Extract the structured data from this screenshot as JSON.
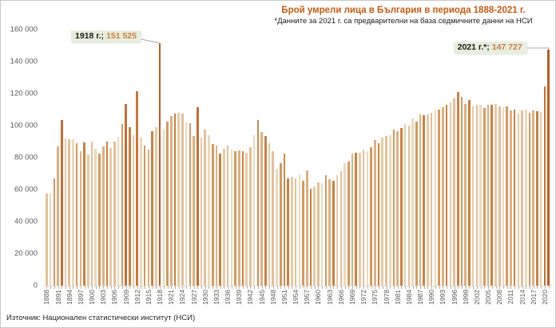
{
  "header": {
    "title": "Брой умрели лица в България в периода 1888-2021 г.",
    "subtitle": "*Данните за 2021 г. са предварителни на база седмичните данни на НСИ"
  },
  "annotations": {
    "a1918": {
      "label": "1918 г.;",
      "value": "151 525"
    },
    "a2021": {
      "label": "2021 г.*;",
      "value": "147 727"
    }
  },
  "source": "Източник: Национален статистически институт (НСИ)",
  "colors": {
    "title_text": "#c55a11",
    "annotation_value_text": "#cf7b45",
    "annotation_bg": "#e7eedd",
    "connector": "#a6a6a6",
    "axis_line": "#d9d9d9",
    "year_tick": "#c9a97f",
    "bar_palette": [
      "#e2c09a",
      "#ecd9bd",
      "#d29a62",
      "#ddb083",
      "#c58245",
      "#e6cba8"
    ],
    "dark_years": {
      "1892": "#c1703a",
      "1909": "#c1703a",
      "1912": "#c47a3e",
      "1918": "#b55f27",
      "1928": "#c1703a",
      "1944": "#cd8a4e",
      "1951": "#cd8a4e",
      "1997": "#c88447",
      "2020": "#c0703a",
      "2021": "#b55f27"
    }
  },
  "chart_data": {
    "type": "bar",
    "title": "Брой умрели лица в България в периода 1888-2021 г.",
    "xlabel": "",
    "ylabel": "",
    "ylim": [
      0,
      160000
    ],
    "y_tick_labels": [
      "0",
      "20 000",
      "40 000",
      "60 000",
      "80 000",
      "100 000",
      "120 000",
      "140 000",
      "160 000"
    ],
    "x_tick_step": 3,
    "grid": false,
    "legend": "none",
    "categories": [
      1888,
      1889,
      1890,
      1891,
      1892,
      1893,
      1894,
      1895,
      1896,
      1897,
      1898,
      1899,
      1900,
      1901,
      1902,
      1903,
      1904,
      1905,
      1906,
      1907,
      1908,
      1909,
      1910,
      1911,
      1912,
      1913,
      1914,
      1915,
      1916,
      1917,
      1918,
      1919,
      1920,
      1921,
      1922,
      1923,
      1924,
      1925,
      1926,
      1927,
      1928,
      1929,
      1930,
      1931,
      1932,
      1933,
      1934,
      1935,
      1936,
      1937,
      1938,
      1939,
      1940,
      1941,
      1942,
      1943,
      1944,
      1945,
      1946,
      1947,
      1948,
      1949,
      1950,
      1951,
      1952,
      1953,
      1954,
      1955,
      1956,
      1957,
      1958,
      1959,
      1960,
      1961,
      1962,
      1963,
      1964,
      1965,
      1966,
      1967,
      1968,
      1969,
      1970,
      1971,
      1972,
      1973,
      1974,
      1975,
      1976,
      1977,
      1978,
      1979,
      1980,
      1981,
      1982,
      1983,
      1984,
      1985,
      1986,
      1987,
      1988,
      1989,
      1990,
      1991,
      1992,
      1993,
      1994,
      1995,
      1996,
      1997,
      1998,
      1999,
      2000,
      2001,
      2002,
      2003,
      2004,
      2005,
      2006,
      2007,
      2008,
      2009,
      2010,
      2011,
      2012,
      2013,
      2014,
      2015,
      2016,
      2017,
      2018,
      2019,
      2020,
      2021
    ],
    "values": [
      57500,
      57400,
      66800,
      86900,
      103400,
      92100,
      91600,
      91600,
      89100,
      84000,
      89600,
      82000,
      90000,
      85400,
      82400,
      87100,
      90000,
      86100,
      90000,
      92800,
      100800,
      113600,
      99100,
      93900,
      121500,
      92500,
      87700,
      84900,
      96700,
      99200,
      151525,
      97900,
      102600,
      106000,
      107300,
      108000,
      107700,
      101800,
      101500,
      93300,
      111500,
      92500,
      97600,
      94200,
      88500,
      87500,
      82500,
      85500,
      87400,
      84900,
      84000,
      84400,
      84000,
      83200,
      86600,
      94200,
      103400,
      95800,
      93300,
      89100,
      84000,
      73100,
      76400,
      82400,
      67200,
      68000,
      67200,
      69700,
      65500,
      72200,
      60400,
      62100,
      64500,
      64000,
      68900,
      66300,
      65500,
      68900,
      71400,
      76400,
      77300,
      82400,
      83200,
      83200,
      84900,
      84000,
      86600,
      90800,
      88800,
      92500,
      93300,
      94200,
      97600,
      96700,
      98400,
      100900,
      100100,
      104300,
      102600,
      106800,
      106300,
      106800,
      108200,
      109400,
      110200,
      111500,
      112800,
      114400,
      117000,
      121200,
      117800,
      113600,
      116100,
      111900,
      112800,
      113200,
      111000,
      112800,
      112800,
      113600,
      111900,
      111500,
      112200,
      109400,
      110200,
      107700,
      109400,
      110200,
      108200,
      109400,
      108900,
      108500,
      124600,
      147727
    ],
    "annotations": [
      {
        "year": 1918,
        "text": "1918 г.; 151 525"
      },
      {
        "year": 2021,
        "text": "2021 г.*; 147 727"
      }
    ]
  }
}
